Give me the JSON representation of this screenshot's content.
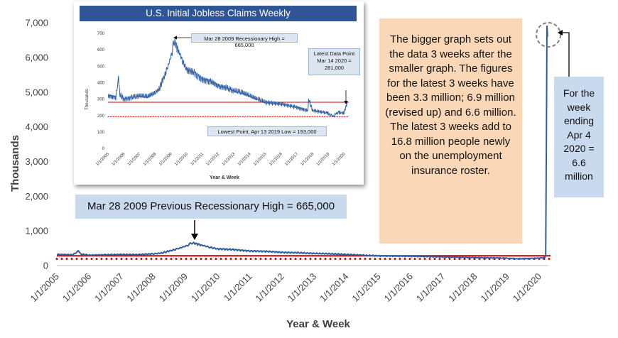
{
  "chart_data": [
    {
      "type": "line",
      "title": "",
      "xlabel": "Year & Week",
      "ylabel": "Thousands",
      "ylim": [
        0,
        7000
      ],
      "yticks": [
        "0",
        "1,000",
        "2,000",
        "3,000",
        "4,000",
        "5,000",
        "6,000",
        "7,000"
      ],
      "ytick_values": [
        0,
        1000,
        2000,
        3000,
        4000,
        5000,
        6000,
        7000
      ],
      "xticks": [
        "1/1/2005",
        "1/1/2006",
        "1/1/2007",
        "1/1/2008",
        "1/1/2009",
        "1/1/2010",
        "1/1/2011",
        "1/1/2012",
        "1/1/2013",
        "1/1/2014",
        "1/1/2015",
        "1/1/2016",
        "1/1/2017",
        "1/1/2018",
        "1/1/2019",
        "1/1/2020"
      ],
      "xlim": [
        2005.0,
        2020.35
      ],
      "grid": false,
      "series": [
        {
          "name": "",
          "color": "#2e5fa3",
          "x": [
            2005.0,
            2005.5,
            2005.67,
            2005.75,
            2006.0,
            2006.5,
            2007.0,
            2007.5,
            2008.0,
            2008.25,
            2008.5,
            2008.75,
            2009.0,
            2009.15,
            2009.24,
            2009.3,
            2009.5,
            2009.75,
            2010.0,
            2010.5,
            2011.0,
            2011.5,
            2012.0,
            2012.5,
            2013.0,
            2013.5,
            2014.0,
            2014.5,
            2015.0,
            2016.0,
            2017.0,
            2018.0,
            2019.0,
            2019.28,
            2020.0,
            2020.17,
            2020.2,
            2020.22,
            2020.24,
            2020.26
          ],
          "values": [
            320,
            310,
            420,
            330,
            300,
            310,
            320,
            315,
            340,
            360,
            420,
            480,
            560,
            630,
            665,
            640,
            590,
            530,
            480,
            460,
            420,
            410,
            380,
            370,
            350,
            340,
            320,
            300,
            280,
            270,
            250,
            230,
            215,
            193,
            215,
            230,
            281,
            3300,
            6900,
            6600
          ]
        }
      ],
      "reference_lines": [
        {
          "style": "solid",
          "color": "#c00000",
          "value": 281
        },
        {
          "style": "dotted",
          "color": "#c00000",
          "value": 193
        }
      ]
    },
    {
      "type": "line",
      "title": "U.S. Initial Jobless Claims Weekly",
      "xlabel": "Year & Week",
      "ylabel": "Thousands",
      "ylim": [
        0,
        700
      ],
      "yticks": [
        "0",
        "100",
        "200",
        "300",
        "400",
        "500",
        "600",
        "700"
      ],
      "ytick_values": [
        0,
        100,
        200,
        300,
        400,
        500,
        600,
        700
      ],
      "xticks": [
        "1/1/2005",
        "1/1/2006",
        "1/1/2007",
        "1/1/2008",
        "1/1/2009",
        "1/1/2010",
        "1/1/2011",
        "1/1/2012",
        "1/1/2013",
        "1/1/2014",
        "1/1/2015",
        "1/1/2016",
        "1/1/2017",
        "1/1/2018",
        "1/1/2019",
        "1/1/2020"
      ],
      "xlim": [
        2005.0,
        2020.3
      ],
      "series": [
        {
          "name": "",
          "color": "#2e5fa3",
          "x": [
            2005.0,
            2005.5,
            2005.67,
            2005.75,
            2006.0,
            2006.5,
            2007.0,
            2007.5,
            2008.0,
            2008.25,
            2008.5,
            2008.75,
            2009.0,
            2009.15,
            2009.24,
            2009.3,
            2009.5,
            2009.75,
            2010.0,
            2010.5,
            2011.0,
            2011.5,
            2012.0,
            2012.5,
            2013.0,
            2013.5,
            2014.0,
            2014.5,
            2015.0,
            2016.0,
            2017.0,
            2017.7,
            2017.75,
            2018.0,
            2019.0,
            2019.28,
            2019.6,
            2020.0,
            2020.2
          ],
          "values": [
            320,
            310,
            430,
            330,
            300,
            310,
            320,
            315,
            340,
            360,
            420,
            480,
            560,
            630,
            665,
            640,
            590,
            530,
            480,
            460,
            420,
            410,
            380,
            370,
            350,
            340,
            320,
            300,
            280,
            270,
            250,
            230,
            300,
            230,
            215,
            193,
            220,
            215,
            281
          ]
        }
      ],
      "reference_lines": [
        {
          "style": "solid",
          "color": "#c00000",
          "value": 281
        },
        {
          "style": "dotted",
          "color": "#c00000",
          "value": 193
        }
      ],
      "annotations": [
        "Mar 28 2009 Recessionary High = 665,000",
        "Latest Data Point Mar 14 2020 = 281,000",
        "Lowest Point, Apr 13 2019 Low = 193,000"
      ]
    }
  ],
  "annotations": {
    "orange_note": "The bigger graph sets out the data 3 weeks after the smaller graph. The figures for the latest 3 weeks have been 3.3 million; 6.9 million (revised up) and 6.6 million. The latest 3 weeks add to 16.8 million people newly on the unemployment insurance roster.",
    "week_note": "For the week ending Apr 4 2020 = 6.6 million",
    "high_note": "Mar 28 2009 Previous Recessionary High = 665,000"
  },
  "colors": {
    "line": "#2e5fa3",
    "reference": "#c00000",
    "title_bar": "#2f5597",
    "note_orange": "#f9d7b7",
    "note_blue": "#c9d9ee"
  }
}
